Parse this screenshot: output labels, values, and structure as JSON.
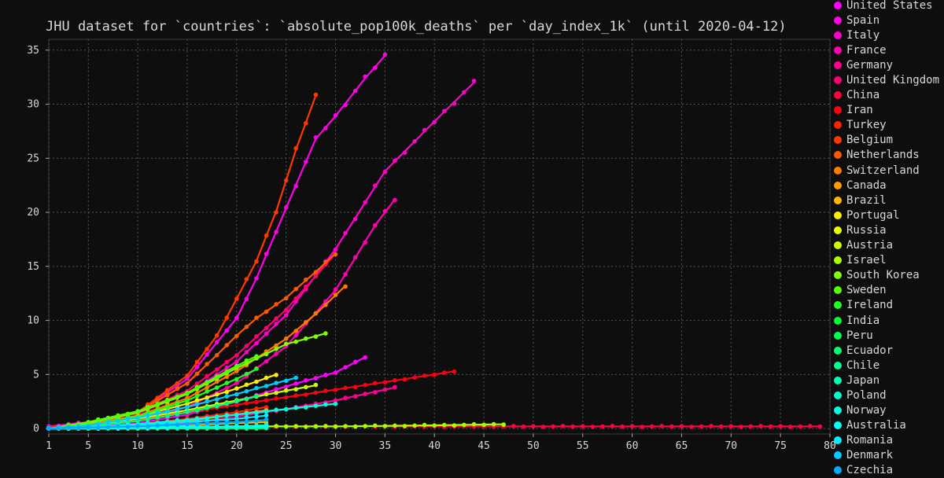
{
  "chart_data": {
    "type": "line",
    "title": "JHU dataset for `countries`: `absolute_pop100k_deaths` per `day_index_1k` (until 2020-04-12)",
    "xlabel": "",
    "ylabel": "",
    "xlim": [
      1,
      80
    ],
    "ylim": [
      -0.5,
      36
    ],
    "x_ticks": [
      1,
      5,
      10,
      15,
      20,
      25,
      30,
      35,
      40,
      45,
      50,
      55,
      60,
      65,
      70,
      75,
      80
    ],
    "y_ticks": [
      0,
      5,
      10,
      15,
      20,
      25,
      30,
      35
    ],
    "grid": true,
    "legend_position": "right",
    "series": [
      {
        "name": "United States",
        "color": "#ff00ff",
        "x": [
          1,
          5,
          10,
          15,
          20,
          25,
          30,
          33
        ],
        "y": [
          0.0,
          0.1,
          0.5,
          1.3,
          2.5,
          3.9,
          5.2,
          6.6
        ]
      },
      {
        "name": "Spain",
        "color": "#ff00e8",
        "x": [
          1,
          5,
          10,
          15,
          20,
          22,
          25,
          28,
          30,
          33,
          35
        ],
        "y": [
          0.1,
          0.5,
          1.5,
          4.6,
          10.2,
          13.9,
          20.4,
          26.8,
          28.9,
          32.4,
          34.5
        ]
      },
      {
        "name": "Italy",
        "color": "#ff00cc",
        "x": [
          1,
          5,
          10,
          15,
          20,
          25,
          30,
          35,
          40,
          44
        ],
        "y": [
          0.2,
          0.6,
          1.4,
          3.2,
          6.2,
          10.5,
          16.6,
          23.8,
          28.4,
          32.0
        ]
      },
      {
        "name": "France",
        "color": "#ff00b0",
        "x": [
          1,
          5,
          10,
          15,
          20,
          25,
          30,
          34,
          36
        ],
        "y": [
          0.0,
          0.2,
          0.7,
          2.0,
          4.2,
          7.6,
          12.8,
          18.8,
          21.2
        ]
      },
      {
        "name": "Germany",
        "color": "#ff0090",
        "x": [
          1,
          5,
          10,
          15,
          20,
          25,
          30,
          35,
          36
        ],
        "y": [
          0.0,
          0.1,
          0.2,
          0.5,
          1.1,
          1.8,
          2.6,
          3.6,
          3.8
        ]
      },
      {
        "name": "United Kingdom",
        "color": "#ff0070",
        "x": [
          1,
          5,
          10,
          15,
          20,
          25,
          30
        ],
        "y": [
          0.0,
          0.5,
          1.5,
          3.5,
          6.8,
          11.0,
          16.2
        ]
      },
      {
        "name": "China",
        "color": "#ff0040",
        "x": [
          1,
          10,
          20,
          30,
          40,
          50,
          60,
          70,
          79
        ],
        "y": [
          0.0,
          0.1,
          0.2,
          0.2,
          0.2,
          0.2,
          0.2,
          0.2,
          0.2
        ]
      },
      {
        "name": "Iran",
        "color": "#ff0010",
        "x": [
          1,
          5,
          10,
          15,
          20,
          25,
          30,
          35,
          40,
          42
        ],
        "y": [
          0.1,
          0.3,
          0.9,
          1.5,
          2.2,
          2.9,
          3.6,
          4.3,
          5.0,
          5.3
        ]
      },
      {
        "name": "Turkey",
        "color": "#ff2000",
        "x": [
          1,
          5,
          10,
          15,
          20,
          23
        ],
        "y": [
          0.0,
          0.1,
          0.4,
          0.9,
          1.5,
          2.0
        ]
      },
      {
        "name": "Belgium",
        "color": "#ff3800",
        "x": [
          1,
          5,
          10,
          15,
          18,
          20,
          22,
          24,
          26,
          28
        ],
        "y": [
          0.0,
          0.3,
          1.5,
          4.9,
          8.6,
          12.0,
          15.5,
          20.1,
          25.8,
          30.8
        ]
      },
      {
        "name": "Netherlands",
        "color": "#ff5800",
        "x": [
          1,
          5,
          10,
          15,
          18,
          20,
          22,
          25,
          28,
          30
        ],
        "y": [
          0.0,
          0.4,
          1.5,
          4.2,
          6.8,
          8.6,
          10.2,
          12.1,
          14.5,
          16.2
        ]
      },
      {
        "name": "Switzerland",
        "color": "#ff7800",
        "x": [
          1,
          5,
          10,
          15,
          20,
          25,
          28,
          31
        ],
        "y": [
          0.0,
          0.4,
          1.2,
          2.8,
          5.3,
          8.3,
          10.6,
          13.2
        ]
      },
      {
        "name": "Canada",
        "color": "#ff9a00",
        "x": [
          1,
          5,
          10,
          15,
          20,
          23
        ],
        "y": [
          0.0,
          0.1,
          0.3,
          0.7,
          1.3,
          1.7
        ]
      },
      {
        "name": "Brazil",
        "color": "#ffb800",
        "x": [
          1,
          5,
          10,
          15,
          20,
          23
        ],
        "y": [
          0.0,
          0.1,
          0.2,
          0.3,
          0.5,
          0.6
        ]
      },
      {
        "name": "Portugal",
        "color": "#ffee00",
        "x": [
          1,
          5,
          10,
          15,
          20,
          24
        ],
        "y": [
          0.0,
          0.3,
          1.1,
          2.3,
          3.7,
          5.0
        ]
      },
      {
        "name": "Russia",
        "color": "#e8ff00",
        "x": [
          1,
          5,
          10,
          15,
          20,
          23
        ],
        "y": [
          0.0,
          0.0,
          0.0,
          0.1,
          0.1,
          0.1
        ]
      },
      {
        "name": "Austria",
        "color": "#ccff00",
        "x": [
          1,
          5,
          10,
          15,
          20,
          25,
          28
        ],
        "y": [
          0.0,
          0.3,
          0.9,
          1.7,
          2.6,
          3.5,
          4.0
        ]
      },
      {
        "name": "Israel",
        "color": "#a8ff00",
        "x": [
          1,
          10,
          20,
          30,
          40,
          47
        ],
        "y": [
          0.0,
          0.1,
          0.2,
          0.2,
          0.3,
          0.4
        ]
      },
      {
        "name": "South Korea",
        "color": "#80ff00",
        "x": [
          1,
          5,
          10,
          15,
          20,
          25,
          29
        ],
        "y": [
          0.0,
          0.5,
          1.5,
          3.2,
          5.6,
          7.8,
          8.8
        ]
      },
      {
        "name": "Sweden",
        "color": "#50ff00",
        "x": [
          1,
          5,
          10,
          15,
          20,
          22
        ],
        "y": [
          0.0,
          0.6,
          1.6,
          3.3,
          5.8,
          6.7
        ]
      },
      {
        "name": "Ireland",
        "color": "#20ff20",
        "x": [
          1,
          5,
          10,
          15,
          20,
          22
        ],
        "y": [
          0.0,
          0.3,
          1.1,
          2.6,
          4.6,
          5.5
        ]
      },
      {
        "name": "India",
        "color": "#00ff30",
        "x": [
          1,
          10,
          20,
          23
        ],
        "y": [
          0.0,
          0.0,
          0.0,
          0.0
        ]
      },
      {
        "name": "Peru",
        "color": "#00ff50",
        "x": [
          1,
          10,
          20,
          23
        ],
        "y": [
          0.0,
          0.1,
          0.2,
          0.3
        ]
      },
      {
        "name": "Ecuador",
        "color": "#00ff70",
        "x": [
          1,
          5,
          10,
          15,
          20,
          22
        ],
        "y": [
          0.0,
          0.2,
          0.7,
          1.5,
          2.5,
          3.0
        ]
      },
      {
        "name": "Chile",
        "color": "#00ff90",
        "x": [
          1,
          10,
          20,
          23
        ],
        "y": [
          0.0,
          0.1,
          0.2,
          0.3
        ]
      },
      {
        "name": "Japan",
        "color": "#00ffb0",
        "x": [
          1,
          10,
          20,
          23
        ],
        "y": [
          0.0,
          0.0,
          0.1,
          0.1
        ]
      },
      {
        "name": "Poland",
        "color": "#00ffcc",
        "x": [
          1,
          10,
          20,
          23
        ],
        "y": [
          0.0,
          0.1,
          0.2,
          0.3
        ]
      },
      {
        "name": "Norway",
        "color": "#00ffe0",
        "x": [
          1,
          5,
          10,
          15,
          20,
          25,
          30
        ],
        "y": [
          0.0,
          0.1,
          0.4,
          0.8,
          1.3,
          1.8,
          2.3
        ]
      },
      {
        "name": "Australia",
        "color": "#00fff8",
        "x": [
          1,
          10,
          20,
          23
        ],
        "y": [
          0.0,
          0.1,
          0.2,
          0.2
        ]
      },
      {
        "name": "Romania",
        "color": "#00eeff",
        "x": [
          1,
          5,
          10,
          15,
          20,
          23
        ],
        "y": [
          0.0,
          0.1,
          0.3,
          0.6,
          0.9,
          1.2
        ]
      },
      {
        "name": "Denmark",
        "color": "#00ccff",
        "x": [
          1,
          5,
          10,
          15,
          20,
          26
        ],
        "y": [
          0.0,
          0.3,
          1.0,
          2.0,
          3.2,
          4.7
        ]
      },
      {
        "name": "Czechia",
        "color": "#00aaff",
        "x": [
          1,
          5,
          10,
          15,
          20,
          23
        ],
        "y": [
          0.0,
          0.1,
          0.2,
          0.4,
          0.6,
          0.8
        ]
      }
    ]
  }
}
